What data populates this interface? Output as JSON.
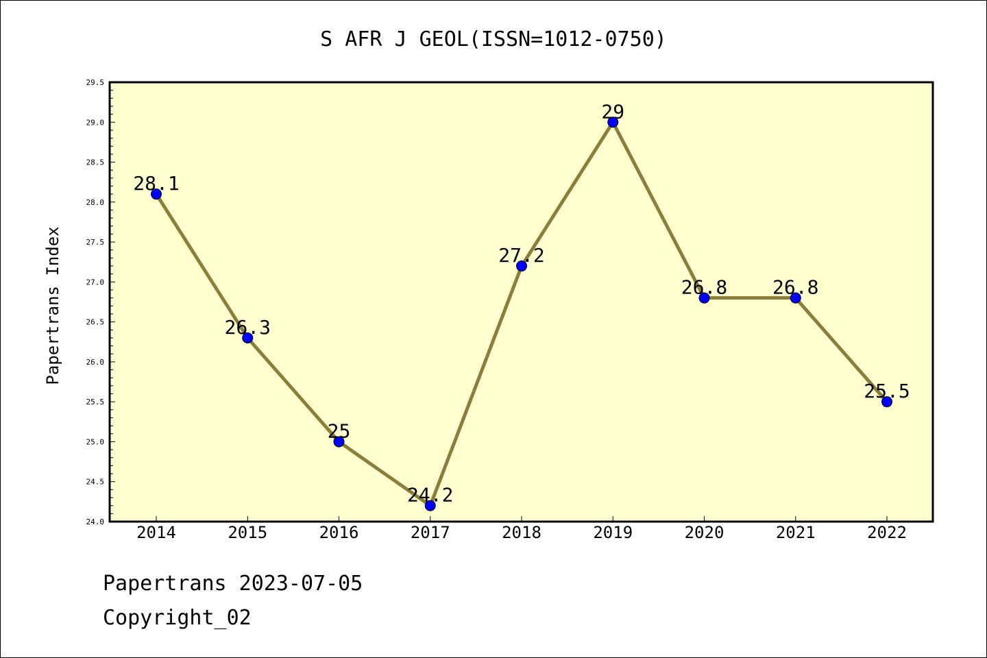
{
  "chart_data": {
    "type": "line",
    "title": "S AFR J GEOL(ISSN=1012-0750)",
    "xlabel": "",
    "ylabel": "Papertrans Index",
    "categories": [
      "2014",
      "2015",
      "2016",
      "2017",
      "2018",
      "2019",
      "2020",
      "2021",
      "2022"
    ],
    "values": [
      28.1,
      26.3,
      25,
      24.2,
      27.2,
      29,
      26.8,
      26.8,
      25.5
    ],
    "data_labels": [
      "28.1",
      "26.3",
      "25",
      "24.2",
      "27.2",
      "29",
      "26.8",
      "26.8",
      "25.5"
    ],
    "ylim": [
      24.0,
      29.5
    ],
    "yticks": [
      "24.0",
      "24.5",
      "25.0",
      "25.5",
      "26.0",
      "26.5",
      "27.0",
      "27.5",
      "28.0",
      "28.5",
      "29.0",
      "29.5"
    ],
    "grid": false,
    "legend": "none",
    "colors": {
      "plot_background": "#FFFFD0",
      "line": "#8B7D3A",
      "marker": "#0000FF"
    }
  },
  "footer": {
    "source_line": "Papertrans 2023-07-05",
    "copyright_line": "Copyright_02"
  }
}
